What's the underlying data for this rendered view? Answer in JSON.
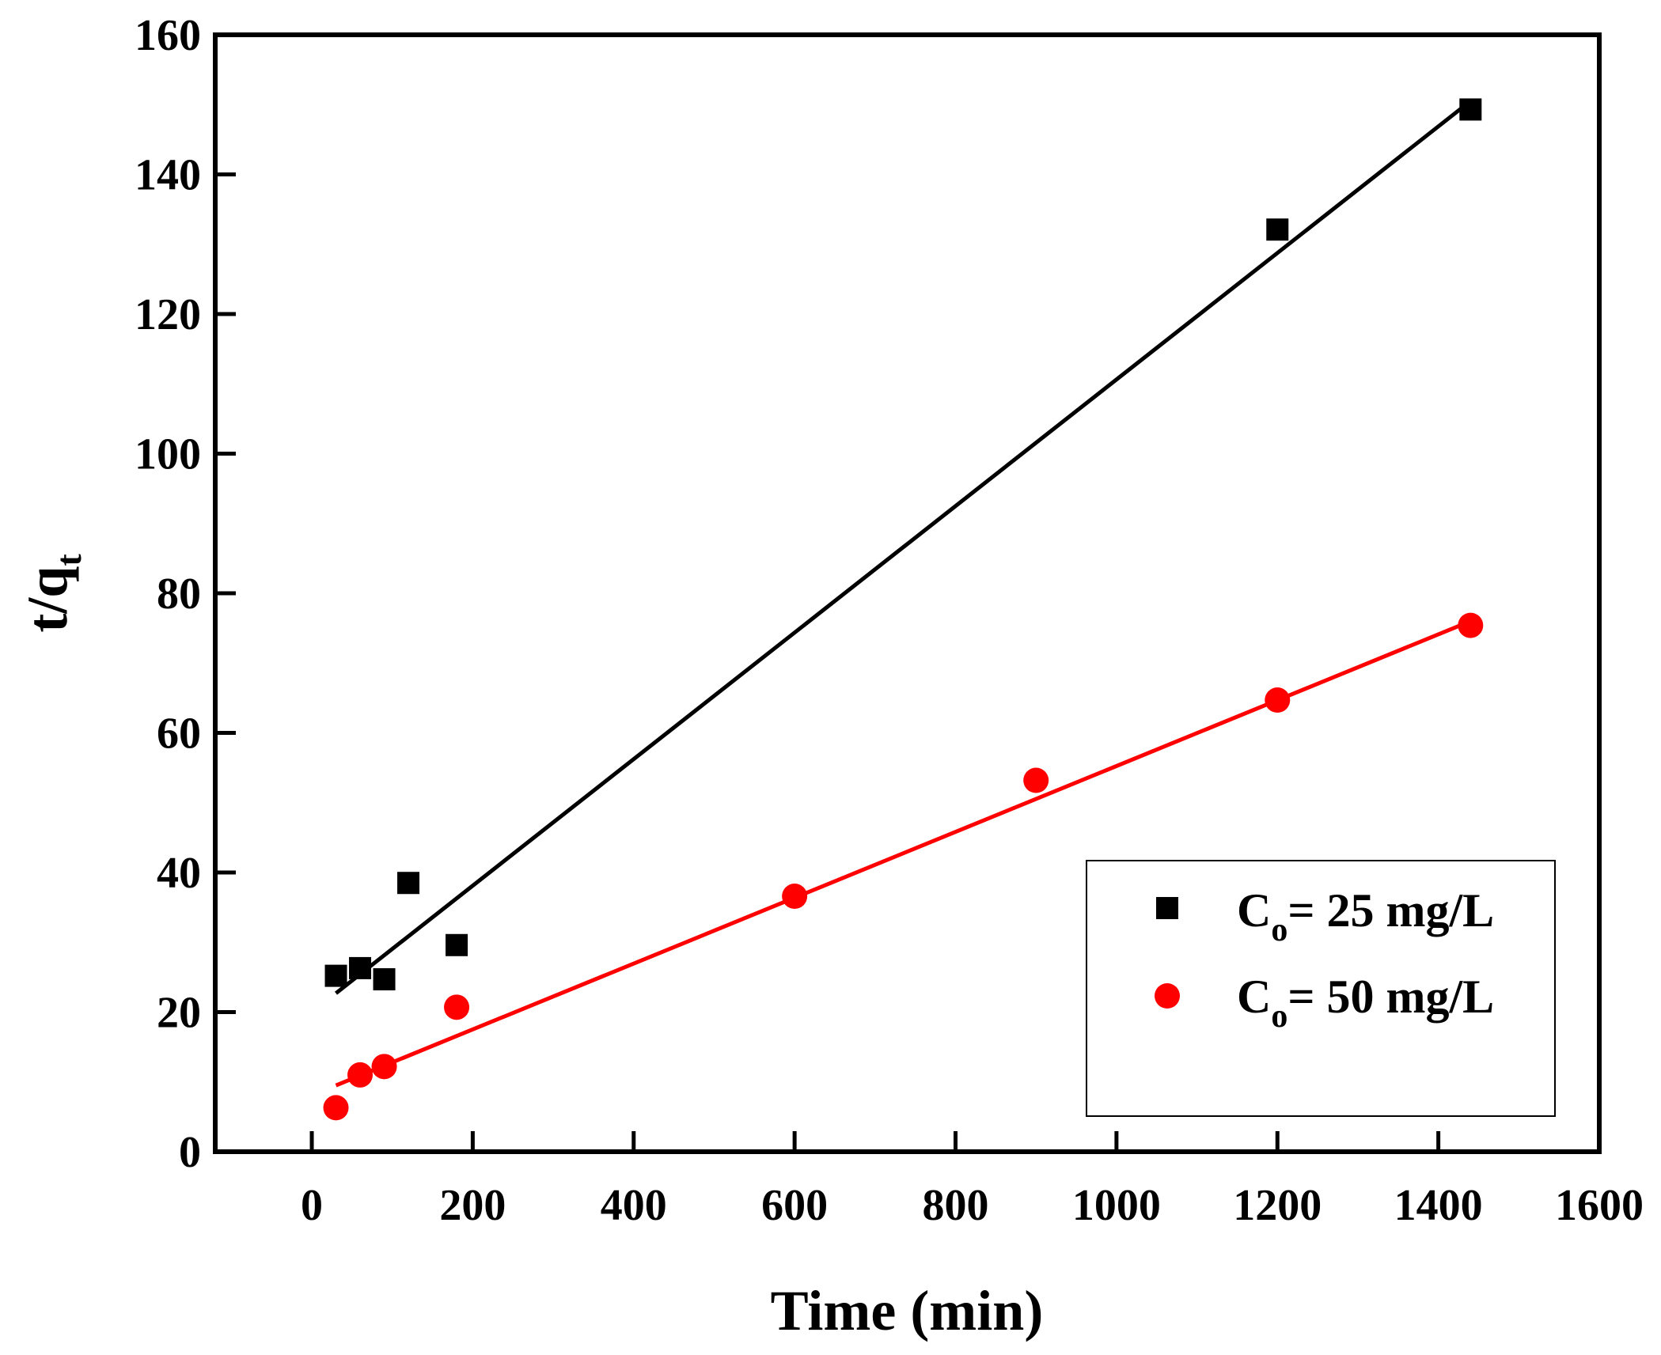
{
  "chart_data": {
    "type": "scatter",
    "xlabel": "Time (min)",
    "ylabel": {
      "main": "t/q",
      "sub": "t"
    },
    "xlim": [
      -120,
      1600
    ],
    "ylim": [
      0,
      160
    ],
    "xticks": [
      0,
      200,
      400,
      600,
      800,
      1000,
      1200,
      1400,
      1600
    ],
    "yticks": [
      0,
      20,
      40,
      60,
      80,
      100,
      120,
      140,
      160
    ],
    "legend_position": "bottom-right",
    "series": [
      {
        "name": "C",
        "name_sub": "o",
        "name_rest": "= 25 mg/L",
        "marker": "square",
        "color": "#000000",
        "points": [
          {
            "x": 30,
            "y": 25.2
          },
          {
            "x": 60,
            "y": 26.3
          },
          {
            "x": 90,
            "y": 24.7
          },
          {
            "x": 120,
            "y": 38.5
          },
          {
            "x": 180,
            "y": 29.6
          },
          {
            "x": 1200,
            "y": 132.1
          },
          {
            "x": 1440,
            "y": 149.3
          }
        ],
        "fit": {
          "x": [
            30,
            1440
          ],
          "y": [
            22.7,
            150.5
          ]
        }
      },
      {
        "name": "C",
        "name_sub": "o",
        "name_rest": "= 50 mg/L",
        "marker": "circle",
        "color": "#ff0000",
        "points": [
          {
            "x": 30,
            "y": 6.3
          },
          {
            "x": 60,
            "y": 11.0
          },
          {
            "x": 90,
            "y": 12.2
          },
          {
            "x": 180,
            "y": 20.7
          },
          {
            "x": 600,
            "y": 36.6
          },
          {
            "x": 900,
            "y": 53.2
          },
          {
            "x": 1200,
            "y": 64.7
          },
          {
            "x": 1440,
            "y": 75.4
          }
        ],
        "fit": {
          "x": [
            30,
            1440
          ],
          "y": [
            9.5,
            76.0
          ]
        }
      }
    ]
  }
}
